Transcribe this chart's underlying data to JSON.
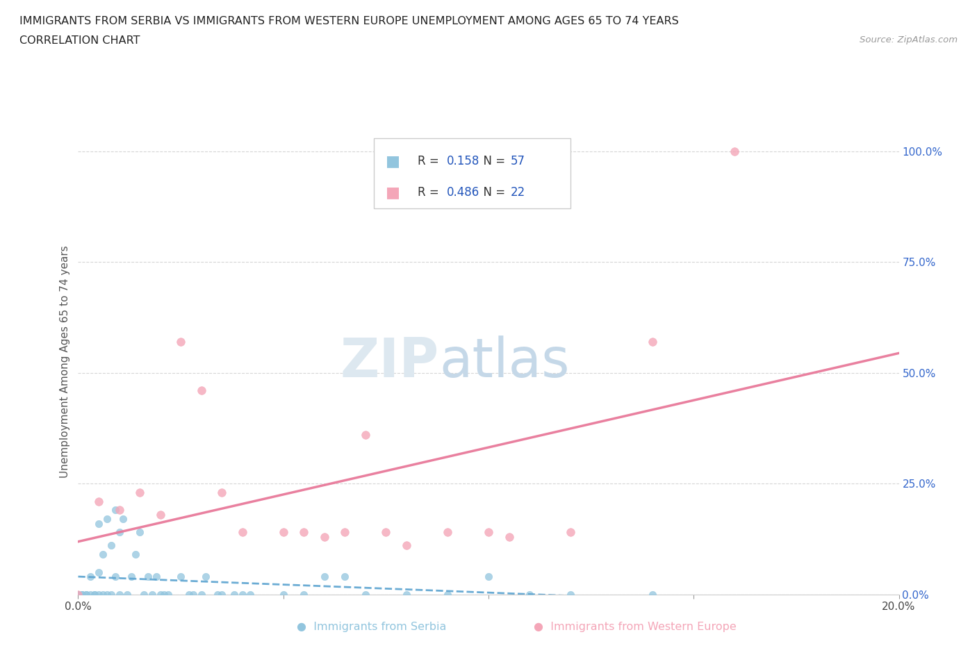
{
  "title_line1": "IMMIGRANTS FROM SERBIA VS IMMIGRANTS FROM WESTERN EUROPE UNEMPLOYMENT AMONG AGES 65 TO 74 YEARS",
  "title_line2": "CORRELATION CHART",
  "source_text": "Source: ZipAtlas.com",
  "ylabel": "Unemployment Among Ages 65 to 74 years",
  "xlim": [
    0.0,
    0.2
  ],
  "ylim": [
    0.0,
    1.05
  ],
  "x_ticks": [
    0.0,
    0.05,
    0.1,
    0.15,
    0.2
  ],
  "y_ticks": [
    0.0,
    0.25,
    0.5,
    0.75,
    1.0
  ],
  "y_tick_labels": [
    "0.0%",
    "25.0%",
    "50.0%",
    "75.0%",
    "100.0%"
  ],
  "serbia_R": 0.158,
  "serbia_N": 57,
  "western_europe_R": 0.486,
  "western_europe_N": 22,
  "serbia_color": "#92c5de",
  "western_europe_color": "#f4a6b8",
  "serbia_line_color": "#5ba3d0",
  "western_europe_line_color": "#e8799a",
  "background_color": "#ffffff",
  "serbia_x": [
    0.0,
    0.0,
    0.0,
    0.001,
    0.001,
    0.002,
    0.002,
    0.003,
    0.003,
    0.004,
    0.004,
    0.005,
    0.005,
    0.005,
    0.006,
    0.006,
    0.007,
    0.007,
    0.008,
    0.008,
    0.009,
    0.009,
    0.01,
    0.01,
    0.011,
    0.012,
    0.013,
    0.014,
    0.015,
    0.016,
    0.017,
    0.018,
    0.019,
    0.02,
    0.021,
    0.022,
    0.025,
    0.027,
    0.028,
    0.03,
    0.031,
    0.034,
    0.035,
    0.038,
    0.04,
    0.042,
    0.05,
    0.055,
    0.06,
    0.065,
    0.07,
    0.08,
    0.09,
    0.1,
    0.11,
    0.12,
    0.14
  ],
  "serbia_y": [
    0.0,
    0.0,
    0.0,
    0.0,
    0.0,
    0.0,
    0.0,
    0.0,
    0.04,
    0.0,
    0.0,
    0.0,
    0.05,
    0.16,
    0.0,
    0.09,
    0.0,
    0.17,
    0.0,
    0.11,
    0.19,
    0.04,
    0.0,
    0.14,
    0.17,
    0.0,
    0.04,
    0.09,
    0.14,
    0.0,
    0.04,
    0.0,
    0.04,
    0.0,
    0.0,
    0.0,
    0.04,
    0.0,
    0.0,
    0.0,
    0.04,
    0.0,
    0.0,
    0.0,
    0.0,
    0.0,
    0.0,
    0.0,
    0.04,
    0.04,
    0.0,
    0.0,
    0.0,
    0.04,
    0.0,
    0.0,
    0.0
  ],
  "western_europe_x": [
    0.0,
    0.005,
    0.01,
    0.015,
    0.02,
    0.025,
    0.03,
    0.035,
    0.04,
    0.05,
    0.055,
    0.06,
    0.065,
    0.07,
    0.075,
    0.08,
    0.09,
    0.1,
    0.105,
    0.12,
    0.14,
    0.16
  ],
  "western_europe_y": [
    0.0,
    0.21,
    0.19,
    0.23,
    0.18,
    0.57,
    0.46,
    0.23,
    0.14,
    0.14,
    0.14,
    0.13,
    0.14,
    0.36,
    0.14,
    0.11,
    0.14,
    0.14,
    0.13,
    0.14,
    0.57,
    1.0
  ]
}
